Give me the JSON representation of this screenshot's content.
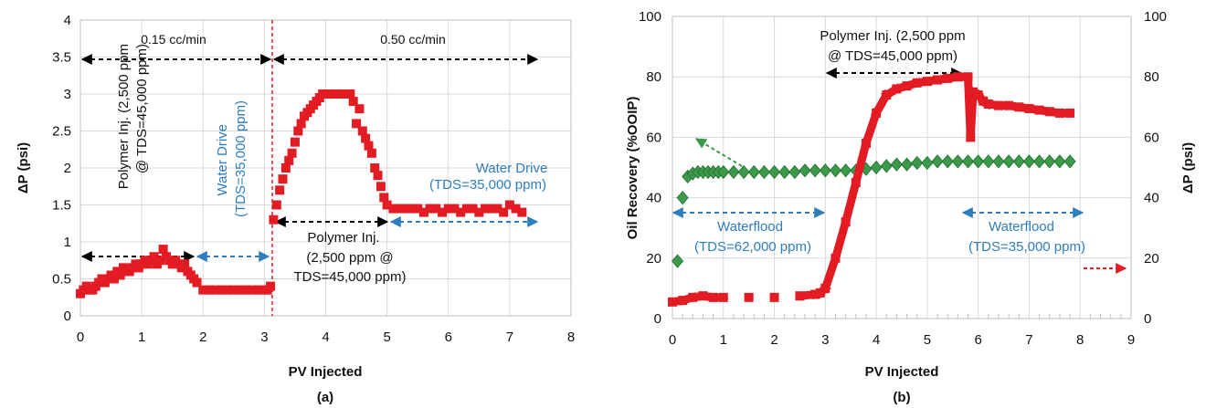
{
  "chart_data": [
    {
      "type": "scatter",
      "panel_label": "(a)",
      "xlabel": "PV Injected",
      "ylabel": "ΔP (psi)",
      "xlim": [
        0,
        8
      ],
      "ylim": [
        0,
        4
      ],
      "xticks": [
        0,
        1,
        2,
        3,
        4,
        5,
        6,
        7,
        8
      ],
      "yticks": [
        0,
        0.5,
        1,
        1.5,
        2,
        2.5,
        3,
        3.5,
        4
      ],
      "grid": true,
      "series": [
        {
          "color": "#e31b23",
          "marker": "square",
          "x": [
            0.0,
            0.05,
            0.1,
            0.15,
            0.2,
            0.25,
            0.3,
            0.35,
            0.4,
            0.45,
            0.5,
            0.55,
            0.6,
            0.65,
            0.7,
            0.75,
            0.8,
            0.85,
            0.9,
            0.95,
            1.0,
            1.05,
            1.1,
            1.15,
            1.2,
            1.25,
            1.3,
            1.35,
            1.4,
            1.45,
            1.5,
            1.55,
            1.6,
            1.65,
            1.7,
            1.75,
            1.8,
            1.85,
            1.9,
            2.0,
            2.1,
            2.2,
            2.3,
            2.4,
            2.5,
            2.6,
            2.7,
            2.8,
            2.9,
            3.0,
            3.05,
            3.1,
            3.15,
            3.2,
            3.25,
            3.3,
            3.35,
            3.4,
            3.45,
            3.5,
            3.55,
            3.6,
            3.65,
            3.7,
            3.75,
            3.8,
            3.85,
            3.9,
            3.95,
            4.0,
            4.1,
            4.2,
            4.3,
            4.4,
            4.45,
            4.5,
            4.55,
            4.6,
            4.65,
            4.7,
            4.75,
            4.8,
            4.85,
            4.9,
            4.95,
            5.0,
            5.1,
            5.2,
            5.3,
            5.4,
            5.5,
            5.6,
            5.7,
            5.8,
            5.9,
            6.0,
            6.1,
            6.2,
            6.3,
            6.4,
            6.5,
            6.6,
            6.7,
            6.8,
            6.9,
            7.0,
            7.1,
            7.2
          ],
          "y": [
            0.3,
            0.35,
            0.4,
            0.35,
            0.35,
            0.4,
            0.45,
            0.5,
            0.45,
            0.5,
            0.55,
            0.5,
            0.6,
            0.55,
            0.65,
            0.6,
            0.6,
            0.65,
            0.7,
            0.65,
            0.7,
            0.75,
            0.7,
            0.75,
            0.8,
            0.7,
            0.75,
            0.9,
            0.8,
            0.75,
            0.7,
            0.75,
            0.7,
            0.65,
            0.7,
            0.6,
            0.55,
            0.5,
            0.45,
            0.35,
            0.35,
            0.35,
            0.35,
            0.35,
            0.35,
            0.35,
            0.35,
            0.35,
            0.35,
            0.35,
            0.35,
            0.4,
            1.3,
            1.5,
            1.7,
            1.85,
            2.0,
            2.1,
            2.2,
            2.35,
            2.5,
            2.6,
            2.7,
            2.75,
            2.8,
            2.85,
            2.9,
            2.95,
            3.0,
            3.0,
            3.0,
            3.0,
            3.0,
            3.0,
            2.9,
            2.6,
            2.8,
            2.5,
            2.4,
            2.3,
            2.2,
            2.0,
            1.9,
            1.75,
            1.6,
            1.5,
            1.45,
            1.45,
            1.45,
            1.45,
            1.45,
            1.4,
            1.45,
            1.45,
            1.4,
            1.45,
            1.45,
            1.4,
            1.45,
            1.45,
            1.4,
            1.45,
            1.45,
            1.45,
            1.4,
            1.5,
            1.45,
            1.4
          ]
        }
      ],
      "annotations": {
        "rate_low": "0.15 cc/min",
        "rate_high": "0.50 cc/min",
        "poly_left_line1": "Polymer Inj. (2,500 ppm",
        "poly_left_line2": "@ TDS=45,000 ppm)",
        "water_drive_v_line1": "Water Drive",
        "water_drive_v_line2": "(TDS=35,000 ppm)",
        "water_drive_h_line1": "Water Drive",
        "water_drive_h_line2": "(TDS=35,000 ppm)",
        "poly_mid_line1": "Polymer Inj.",
        "poly_mid_line2": "(2,500 ppm @",
        "poly_mid_line3": "TDS=45,000 ppm)"
      },
      "colors": {
        "data": "#e31b23",
        "blue_text": "#2e7dbf",
        "divider": "#e31b23"
      }
    },
    {
      "type": "scatter",
      "panel_label": "(b)",
      "xlabel": "PV Injected",
      "ylabel": "Oil Recovery (%OOIP)",
      "y2label": "ΔP (psi)",
      "xlim": [
        0,
        9
      ],
      "ylim": [
        0,
        100
      ],
      "y2lim": [
        0,
        100
      ],
      "xticks": [
        0,
        1,
        2,
        3,
        4,
        5,
        6,
        7,
        8,
        9
      ],
      "yticks": [
        0,
        20,
        40,
        60,
        80,
        100
      ],
      "grid": true,
      "series": [
        {
          "color": "#3a9a4a",
          "marker": "diamond",
          "axis": "left",
          "x": [
            0.1,
            0.2,
            0.3,
            0.4,
            0.5,
            0.6,
            0.7,
            0.8,
            0.9,
            1.0,
            1.2,
            1.4,
            1.6,
            1.8,
            2.0,
            2.2,
            2.4,
            2.6,
            2.8,
            3.0,
            3.2,
            3.4,
            3.6,
            3.8,
            4.0,
            4.2,
            4.4,
            4.6,
            4.8,
            5.0,
            5.2,
            5.4,
            5.6,
            5.8,
            6.0,
            6.2,
            6.4,
            6.6,
            6.8,
            7.0,
            7.2,
            7.4,
            7.6,
            7.8
          ],
          "y": [
            19,
            40,
            47,
            48,
            48.5,
            48.5,
            48.5,
            48.5,
            48.5,
            48.5,
            48.5,
            48.5,
            48.5,
            48.5,
            48.5,
            48.5,
            48.5,
            49,
            49,
            49,
            49,
            49,
            49,
            49.5,
            50,
            50.5,
            51,
            51,
            51.5,
            51.5,
            52,
            52,
            52,
            52,
            52,
            52,
            52,
            52,
            52,
            52,
            52,
            52,
            52,
            52
          ]
        },
        {
          "color": "#e31b23",
          "marker": "square",
          "axis": "right",
          "x": [
            0.0,
            0.2,
            0.4,
            0.6,
            0.8,
            1.0,
            1.5,
            2.0,
            2.5,
            2.8,
            2.9,
            3.0,
            3.2,
            3.4,
            3.6,
            3.8,
            4.0,
            4.2,
            4.4,
            4.6,
            4.8,
            5.0,
            5.2,
            5.4,
            5.6,
            5.8,
            5.85,
            5.9,
            6.0,
            6.1,
            6.2,
            6.4,
            6.6,
            6.8,
            7.0,
            7.2,
            7.4,
            7.6,
            7.8
          ],
          "y": [
            5.5,
            6,
            7,
            7.5,
            7,
            7,
            7,
            7,
            7.5,
            8,
            8.5,
            10,
            20,
            32,
            45,
            58,
            68,
            74,
            76,
            77,
            78,
            78.5,
            79,
            79.5,
            80,
            80,
            60,
            75,
            74,
            72,
            71,
            70.5,
            70.5,
            70,
            69.5,
            69,
            68.5,
            68,
            68
          ]
        }
      ],
      "annotations": {
        "poly_line1": "Polymer Inj. (2,500 ppm",
        "poly_line2": "@ TDS=45,000 ppm)",
        "wf1_line1": "Waterflood",
        "wf1_line2": "(TDS=62,000 ppm)",
        "wf2_line1": "Waterflood",
        "wf2_line2": "(TDS=35,000 ppm)"
      },
      "colors": {
        "recovery": "#3a9a4a",
        "dp": "#e31b23",
        "blue_text": "#2e7dbf"
      }
    }
  ]
}
